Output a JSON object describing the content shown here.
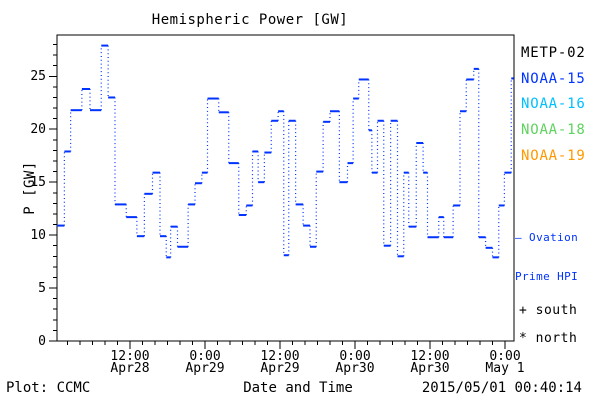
{
  "title": "Hemispheric Power [GW]",
  "axes": {
    "ylabel": "P [GW]",
    "xlabel": "Date and Time",
    "y_ticks": [
      0,
      5,
      10,
      15,
      20,
      25
    ],
    "x_ticks": [
      {
        "hours": 12,
        "time": "12:00",
        "date": "Apr28"
      },
      {
        "hours": 24,
        "time": "0:00",
        "date": "Apr29"
      },
      {
        "hours": 36,
        "time": "12:00",
        "date": "Apr29"
      },
      {
        "hours": 48,
        "time": "0:00",
        "date": "Apr30"
      },
      {
        "hours": 60,
        "time": "12:00",
        "date": "Apr30"
      },
      {
        "hours": 72,
        "time": "0:00",
        "date": "May 1"
      }
    ]
  },
  "footer": {
    "left": "Plot: CCMC",
    "right": "2015/05/01 00:40:14"
  },
  "legend": {
    "satellites": [
      {
        "label": "METP-02",
        "color": "#000000"
      },
      {
        "label": "NOAA-15",
        "color": "#0033ff"
      },
      {
        "label": "NOAA-16",
        "color": "#00bfff"
      },
      {
        "label": "NOAA-18",
        "color": "#5fd35f"
      },
      {
        "label": "NOAA-19",
        "color": "#ff9900"
      }
    ],
    "ovation_line1": "— Ovation",
    "ovation_line2": "Prime HPI",
    "south": "+ south",
    "north": "* north"
  },
  "chart_data": {
    "type": "line",
    "style": "step-histogram, solid horizontal levels joined by dotted vertical connectors",
    "line_color": "#0033ff",
    "title": "Hemispheric Power [GW]",
    "xlabel": "Date and Time",
    "ylabel": "P [GW]",
    "ylim": [
      0,
      28.9
    ],
    "xlim_hours": [
      0.3,
      73.4
    ],
    "x_unit": "hours since 2015-04-28 00:00 UT",
    "grid": false,
    "legend_position": "right, outside plot",
    "steps": [
      [
        0.0,
        10.9
      ],
      [
        1.5,
        17.9
      ],
      [
        2.5,
        21.8
      ],
      [
        4.3,
        23.8
      ],
      [
        5.6,
        21.8
      ],
      [
        7.4,
        27.9
      ],
      [
        8.5,
        23.0
      ],
      [
        9.6,
        12.9
      ],
      [
        11.4,
        11.7
      ],
      [
        13.1,
        9.9
      ],
      [
        14.3,
        13.9
      ],
      [
        15.6,
        15.9
      ],
      [
        16.8,
        9.9
      ],
      [
        17.8,
        7.9
      ],
      [
        18.5,
        10.8
      ],
      [
        19.6,
        8.9
      ],
      [
        21.3,
        12.9
      ],
      [
        22.4,
        14.9
      ],
      [
        23.5,
        15.9
      ],
      [
        24.4,
        22.9
      ],
      [
        26.2,
        21.6
      ],
      [
        27.8,
        16.8
      ],
      [
        29.4,
        11.9
      ],
      [
        30.6,
        12.8
      ],
      [
        31.6,
        17.9
      ],
      [
        32.5,
        15.0
      ],
      [
        33.5,
        17.8
      ],
      [
        34.6,
        20.8
      ],
      [
        35.7,
        21.7
      ],
      [
        36.6,
        8.1
      ],
      [
        37.4,
        20.8
      ],
      [
        38.5,
        12.9
      ],
      [
        39.7,
        10.9
      ],
      [
        40.8,
        8.9
      ],
      [
        41.8,
        16.0
      ],
      [
        42.9,
        20.7
      ],
      [
        44.0,
        21.7
      ],
      [
        45.5,
        15.0
      ],
      [
        46.8,
        16.8
      ],
      [
        47.7,
        22.9
      ],
      [
        48.6,
        24.7
      ],
      [
        50.2,
        19.9
      ],
      [
        50.7,
        15.9
      ],
      [
        51.6,
        20.8
      ],
      [
        52.6,
        9.0
      ],
      [
        53.7,
        20.8
      ],
      [
        54.8,
        8.0
      ],
      [
        55.8,
        15.9
      ],
      [
        56.6,
        10.8
      ],
      [
        57.8,
        18.7
      ],
      [
        58.9,
        15.9
      ],
      [
        59.6,
        9.8
      ],
      [
        61.4,
        11.7
      ],
      [
        62.2,
        9.8
      ],
      [
        63.7,
        12.8
      ],
      [
        64.8,
        21.7
      ],
      [
        65.8,
        24.7
      ],
      [
        67.0,
        25.7
      ],
      [
        67.8,
        9.8
      ],
      [
        68.9,
        8.8
      ],
      [
        70.0,
        7.9
      ],
      [
        71.0,
        12.8
      ],
      [
        71.9,
        15.9
      ],
      [
        73.0,
        24.8
      ]
    ]
  }
}
